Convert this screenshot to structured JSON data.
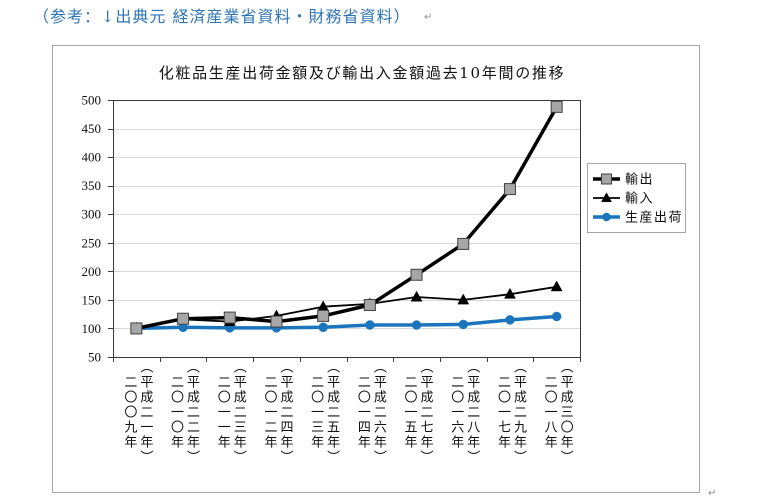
{
  "document": {
    "reference_note": "（参考：↓出典元 経済産業省資料・財務省資料）",
    "paragraph_mark_top": "↵",
    "paragraph_mark_bottom": "↵"
  },
  "colors": {
    "reference_note": "#2e74b5"
  },
  "chart_data": {
    "type": "line",
    "title": "化粧品生産出荷金額及び輸出入金額過去10年間の推移",
    "categories": [
      "二〇〇九年（平成二一年）",
      "二〇一〇年（平成二二年）",
      "二〇一一年（平成二三年）",
      "二〇一二年（平成二四年）",
      "二〇一三年（平成二五年）",
      "二〇一四年（平成二六年）",
      "二〇一五年（平成二七年）",
      "二〇一六年（平成二八年）",
      "二〇一七年（平成二九年）",
      "二〇一八年（平成三〇年）"
    ],
    "ylim": [
      50,
      500
    ],
    "yticks": [
      500,
      450,
      400,
      350,
      300,
      250,
      200,
      150,
      100,
      50
    ],
    "grid": true,
    "legend_position": "right",
    "series": [
      {
        "name": "輸出",
        "color": "#000000",
        "marker": "square",
        "marker_color": "#a6a6a6",
        "values": [
          100,
          117,
          119,
          112,
          122,
          141,
          194,
          248,
          344,
          488
        ]
      },
      {
        "name": "輸入",
        "color": "#000000",
        "marker": "triangle",
        "marker_color": "#000000",
        "values": [
          101,
          116,
          112,
          122,
          138,
          143,
          155,
          150,
          160,
          173
        ]
      },
      {
        "name": "生産出荷",
        "color": "#1b75bc",
        "marker": "circle",
        "marker_color": "#1b75bc",
        "values": [
          100,
          102,
          101,
          101,
          102,
          106,
          106,
          107,
          115,
          121
        ]
      }
    ]
  }
}
